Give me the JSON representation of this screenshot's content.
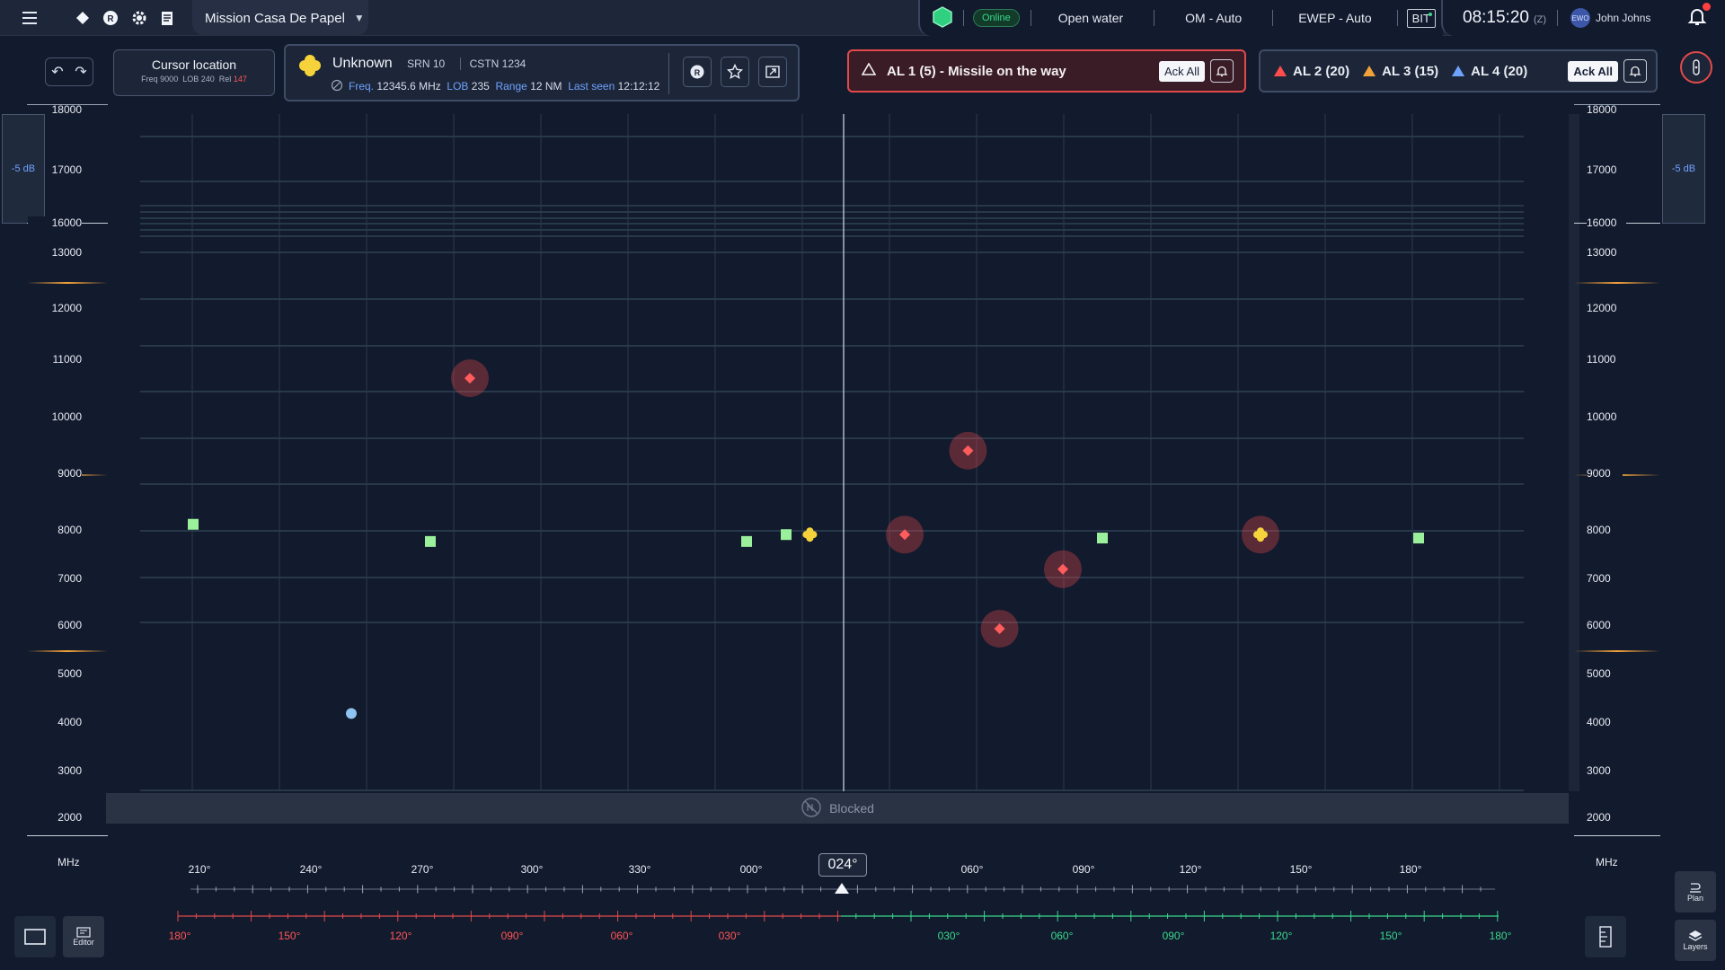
{
  "topbar": {
    "mission": "Mission Casa De Papel",
    "status_online": "Online",
    "water": "Open water",
    "om": "OM - Auto",
    "ewep": "EWEP - Auto",
    "bit": "BIT",
    "time": "08:15:20",
    "zone": "(Z)",
    "user_initials": "EWO",
    "user_name": "John Johns",
    "icons": [
      "menu-icon",
      "diamond-icon",
      "r-icon",
      "gear-icon",
      "document-icon",
      "status-hexagon-icon",
      "notification-bell-icon",
      "compass-icon"
    ]
  },
  "cursor": {
    "title": "Cursor location",
    "freq_label": "Freq",
    "freq": "9000",
    "lob_label": "LOB",
    "lob": "240",
    "rel_label": "Rel",
    "rel": "147"
  },
  "target": {
    "name": "Unknown",
    "srn": "SRN 10",
    "cstn": "CSTN 1234",
    "freq_label": "Freq.",
    "freq": "12345.6 MHz",
    "lob_label": "LOB",
    "lob": "235",
    "range_label": "Range",
    "range": "12 NM",
    "seen_label": "Last seen",
    "seen": "12:12:12"
  },
  "alerts": {
    "al1": "AL 1 (5) - Missile on the way",
    "ack_all": "Ack All",
    "al2": "AL 2 (20)",
    "al3": "AL 3 (15)",
    "al4": "AL 4 (20)",
    "colors": {
      "al1": "#e24a4a",
      "al2": "#ff4d4d",
      "al3": "#f2a23a",
      "al4": "#6ea2ff"
    }
  },
  "left_y_labels": [
    "18000",
    "17000",
    "16000",
    "13000",
    "12000",
    "11000",
    "10000",
    "9000",
    "8000",
    "7000",
    "6000",
    "5000",
    "4000",
    "3000",
    "2000"
  ],
  "right_y_labels": [
    "18000",
    "17000",
    "16000",
    "13000",
    "12000",
    "11000",
    "10000",
    "9000",
    "8000",
    "7000",
    "6000",
    "5000",
    "4000",
    "3000",
    "2000"
  ],
  "axis_unit": "MHz",
  "db_label": "-5 dB",
  "blocked": "Blocked",
  "bearing": "024°",
  "top_bearings": [
    "210°",
    "240°",
    "270°",
    "300°",
    "330°",
    "000°",
    "060°",
    "090°",
    "120°",
    "150°",
    "180°"
  ],
  "relative_red": [
    "180°",
    "150°",
    "120°",
    "090°",
    "060°",
    "030°"
  ],
  "relative_green": [
    "030°",
    "060°",
    "090°",
    "120°",
    "150°",
    "180°"
  ],
  "plot_points": {
    "red_threat": [
      [
        235,
        11650
      ],
      [
        298,
        10550
      ],
      [
        310,
        8850
      ],
      [
        302,
        8000
      ],
      [
        290,
        9350
      ]
    ],
    "green_square": [
      [
        200,
        9500
      ],
      [
        230,
        9250
      ],
      [
        270,
        9250
      ],
      [
        275,
        9350
      ],
      [
        315,
        9300
      ],
      [
        355,
        9300
      ]
    ],
    "yellow_target": [
      [
        335,
        9350
      ],
      [
        278,
        9350
      ]
    ],
    "blue_dot": [
      [
        220,
        6550
      ],
      [
        222,
        3400
      ]
    ]
  },
  "bottom": {
    "editor": "Editor",
    "plan": "Plan",
    "layers": "Layers"
  }
}
